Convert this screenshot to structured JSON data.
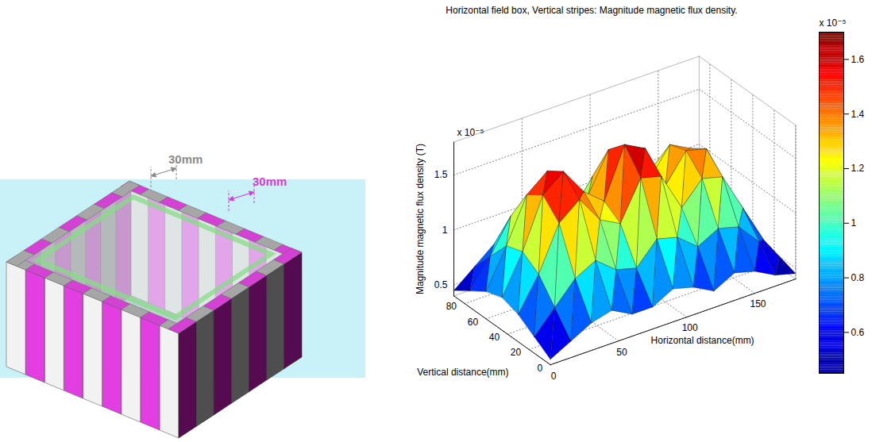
{
  "diagram": {
    "labels": [
      {
        "text": "30mm",
        "color": "#8c8c8c"
      },
      {
        "text": "30mm",
        "color": "#d43fd4"
      }
    ]
  },
  "chart_data": {
    "type": "surface",
    "title": "Horizontal field box, Vertical stripes: Magnitude magnetic flux density.",
    "x_label": "Horizontal distance(mm)",
    "y_label": "Vertical distance(mm)",
    "z_label": "Magnitude magnetic flux density (T)",
    "z_multiplier": "x 10⁻⁵",
    "x": [
      0,
      15,
      30,
      45,
      60,
      75,
      90,
      105,
      120,
      135,
      150,
      165,
      180
    ],
    "y": [
      0,
      15,
      30,
      45,
      60,
      75,
      90
    ],
    "z": [
      [
        0.45,
        0.55,
        0.65,
        0.7,
        0.6,
        0.6,
        0.7,
        0.65,
        0.55,
        0.65,
        0.6,
        0.5,
        0.45
      ],
      [
        0.55,
        0.75,
        0.95,
        1.05,
        0.9,
        0.85,
        1.05,
        1.0,
        0.85,
        0.95,
        0.9,
        0.7,
        0.5
      ],
      [
        0.65,
        0.95,
        1.35,
        1.5,
        1.25,
        1.15,
        1.5,
        1.45,
        1.1,
        1.3,
        1.25,
        0.9,
        0.55
      ],
      [
        0.7,
        1.05,
        1.5,
        1.65,
        1.4,
        1.25,
        1.7,
        1.6,
        1.2,
        1.45,
        1.4,
        1.0,
        0.6
      ],
      [
        0.65,
        1.0,
        1.4,
        1.55,
        1.3,
        1.2,
        1.55,
        1.5,
        1.15,
        1.4,
        1.3,
        0.95,
        0.55
      ],
      [
        0.55,
        0.8,
        1.1,
        1.2,
        1.0,
        0.95,
        1.2,
        1.15,
        0.95,
        1.1,
        1.0,
        0.75,
        0.5
      ],
      [
        0.45,
        0.6,
        0.75,
        0.8,
        0.7,
        0.7,
        0.8,
        0.8,
        0.7,
        0.75,
        0.7,
        0.55,
        0.45
      ]
    ],
    "xlim": [
      0,
      180
    ],
    "xticks": [
      0,
      50,
      100,
      150
    ],
    "ylim": [
      0,
      90
    ],
    "yticks": [
      0,
      20,
      40,
      60,
      80
    ],
    "zlim": [
      0.4,
      1.8
    ],
    "zticks": [
      0.5,
      1,
      1.5
    ],
    "colorbar": {
      "lim": [
        0.45,
        1.7
      ],
      "ticks": [
        0.6,
        0.8,
        1,
        1.2,
        1.4,
        1.6
      ],
      "label": "x 10⁻⁵"
    },
    "grid": true
  }
}
